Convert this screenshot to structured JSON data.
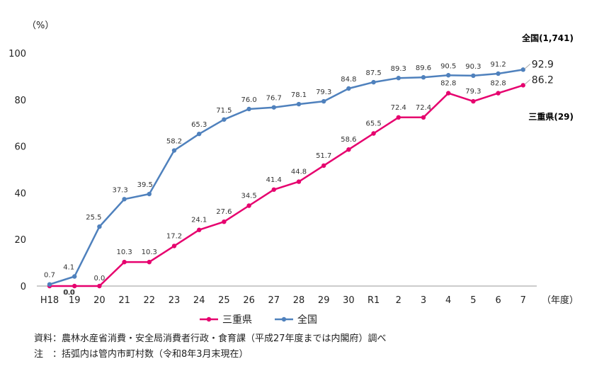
{
  "chart_data": {
    "type": "line",
    "ylabel": "（%）",
    "xlabel": "（年度）",
    "ylim": [
      0,
      100
    ],
    "yticks": [
      0,
      20,
      40,
      60,
      80,
      100
    ],
    "categories": [
      "H18",
      "19",
      "20",
      "21",
      "22",
      "23",
      "24",
      "25",
      "26",
      "27",
      "28",
      "29",
      "30",
      "R1",
      "2",
      "3",
      "4",
      "5",
      "6",
      "7"
    ],
    "series": [
      {
        "name": "三重県",
        "end_label": "三重県(29)",
        "color": "#e6006e",
        "values": [
          0.0,
          0.0,
          0.0,
          10.3,
          10.3,
          17.2,
          24.1,
          27.6,
          34.5,
          41.4,
          44.8,
          51.7,
          58.6,
          65.5,
          72.4,
          72.4,
          82.8,
          79.3,
          82.8,
          86.2
        ],
        "labels": [
          "0.0",
          "0.0",
          "0.0",
          "10.3",
          "10.3",
          "17.2",
          "24.1",
          "27.6",
          "34.5",
          "41.4",
          "44.8",
          "51.7",
          "58.6",
          "65.5",
          "72.4",
          "72.4",
          "82.8",
          "79.3",
          "82.8",
          "86.2"
        ]
      },
      {
        "name": "全国",
        "end_label": "全国(1,741)",
        "color": "#4f81bd",
        "values": [
          0.7,
          4.1,
          25.5,
          37.3,
          39.5,
          58.2,
          65.3,
          71.5,
          76.0,
          76.7,
          78.1,
          79.3,
          84.8,
          87.5,
          89.3,
          89.6,
          90.5,
          90.3,
          91.2,
          92.9
        ],
        "labels": [
          "0.7",
          "4.1",
          "25.5",
          "37.3",
          "39.5",
          "58.2",
          "65.3",
          "71.5",
          "76.0",
          "76.7",
          "78.1",
          "79.3",
          "84.8",
          "87.5",
          "89.3",
          "89.6",
          "90.5",
          "90.3",
          "91.2",
          "92.9"
        ]
      }
    ],
    "legend_position": "bottom-center",
    "grid": false
  },
  "notes": {
    "source": "資料：農林水産省消費・安全局消費者行政・食育課（平成27年度までは内閣府）調べ",
    "note": "注　：括弧内は管内市町村数（令和8年3月末現在）"
  }
}
